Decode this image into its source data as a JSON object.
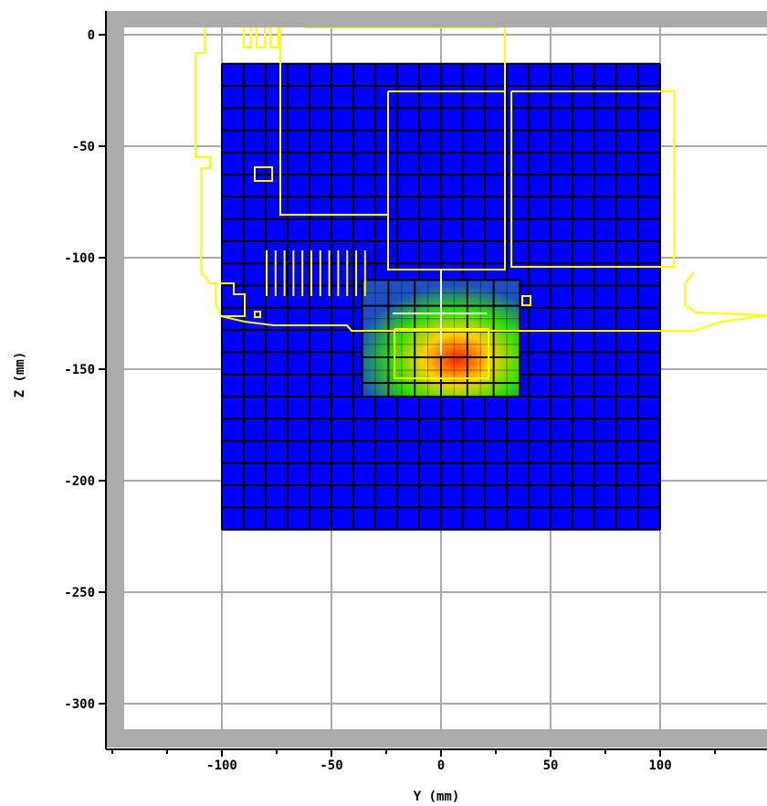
{
  "chart_data": {
    "type": "heatmap",
    "xlabel": "Y (mm)",
    "ylabel": "Z (mm)",
    "xlim": [
      -150,
      145
    ],
    "ylim": [
      -317,
      10
    ],
    "xticks": [
      -100,
      -50,
      0,
      50,
      100
    ],
    "yticks": [
      0,
      -50,
      -100,
      -150,
      -200,
      -250,
      -300
    ],
    "xtick_labels": [
      "-100",
      "-50",
      "0",
      "50",
      "100"
    ],
    "ytick_labels": [
      "0",
      "-50",
      "-100",
      "-150",
      "-200",
      "-250",
      "-300"
    ],
    "grid": true,
    "coarse_region": {
      "y_range": [
        -100,
        100
      ],
      "z_range": [
        -222,
        -13
      ],
      "color": "#0000ff"
    },
    "hot_region": {
      "y_range": [
        -36,
        36
      ],
      "z_range": [
        -162,
        -110
      ],
      "peak": {
        "y": 8,
        "z": -145
      },
      "colors": [
        "#ff2000",
        "#ffd000",
        "#30e000",
        "#2050c0"
      ]
    },
    "overlay_color": "#ffff00",
    "crosshair_color": "#ffffff",
    "crosshair": {
      "y": 0,
      "z": -125
    }
  }
}
